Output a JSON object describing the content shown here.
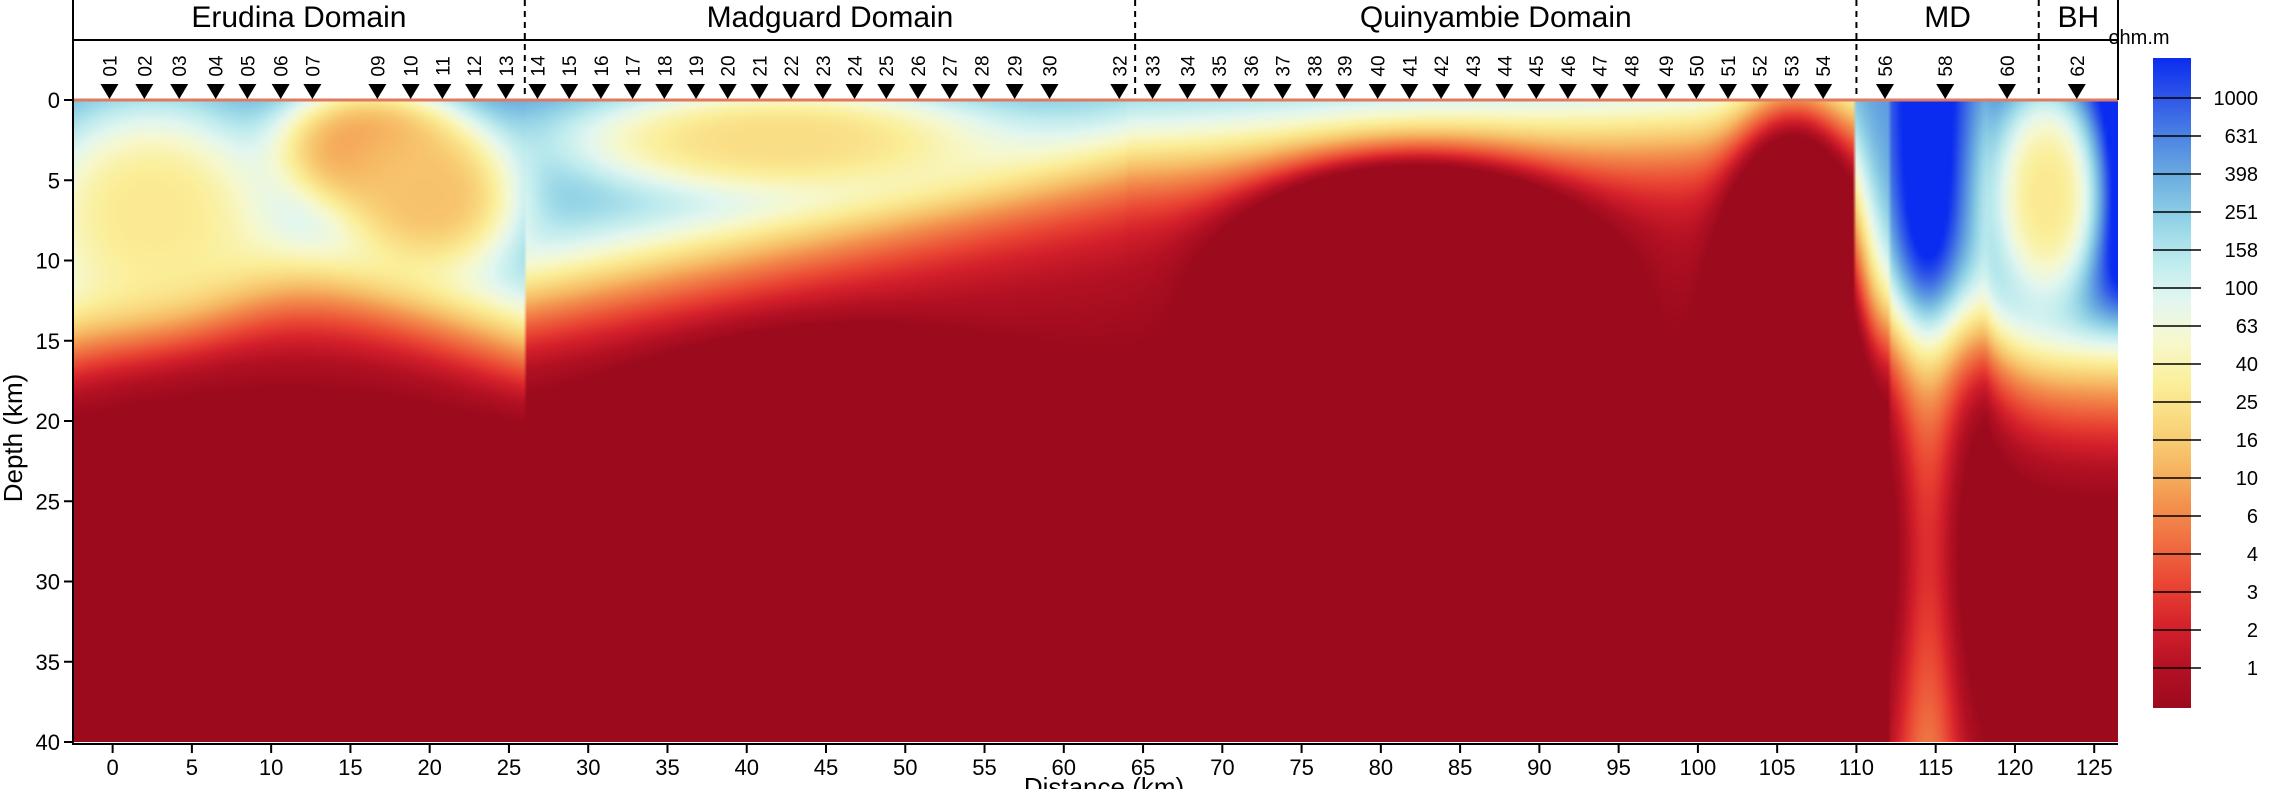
{
  "chart_data": {
    "type": "heatmap",
    "xlabel": "Distance (km)",
    "ylabel": "Depth (km)",
    "xlim": [
      -2.5,
      126.5
    ],
    "ylim": [
      0,
      40
    ],
    "x_ticks": [
      0,
      5,
      10,
      15,
      20,
      25,
      30,
      35,
      40,
      45,
      50,
      55,
      60,
      65,
      70,
      75,
      80,
      85,
      90,
      95,
      100,
      105,
      110,
      115,
      120,
      125
    ],
    "y_ticks": [
      0,
      5,
      10,
      15,
      20,
      25,
      30,
      35,
      40
    ],
    "y_inverted": true,
    "grid": false,
    "domains": [
      {
        "label": "Erudina Domain",
        "x_start": -2.5,
        "x_end": 26
      },
      {
        "label": "Madguard Domain",
        "x_start": 26,
        "x_end": 64.5
      },
      {
        "label": "Quinyambie Domain",
        "x_start": 64.5,
        "x_end": 110
      },
      {
        "label": "MD",
        "x_start": 110,
        "x_end": 121.5
      },
      {
        "label": "BH",
        "x_start": 121.5,
        "x_end": 126.5
      }
    ],
    "stations": [
      {
        "id": "01",
        "x": -0.2
      },
      {
        "id": "02",
        "x": 2.0
      },
      {
        "id": "03",
        "x": 4.2
      },
      {
        "id": "04",
        "x": 6.5
      },
      {
        "id": "05",
        "x": 8.5
      },
      {
        "id": "06",
        "x": 10.6
      },
      {
        "id": "07",
        "x": 12.6
      },
      {
        "id": "09",
        "x": 16.7
      },
      {
        "id": "10",
        "x": 18.8
      },
      {
        "id": "11",
        "x": 20.8
      },
      {
        "id": "12",
        "x": 22.8
      },
      {
        "id": "13",
        "x": 24.8
      },
      {
        "id": "14",
        "x": 26.8
      },
      {
        "id": "15",
        "x": 28.8
      },
      {
        "id": "16",
        "x": 30.8
      },
      {
        "id": "17",
        "x": 32.8
      },
      {
        "id": "18",
        "x": 34.8
      },
      {
        "id": "19",
        "x": 36.8
      },
      {
        "id": "20",
        "x": 38.8
      },
      {
        "id": "21",
        "x": 40.8
      },
      {
        "id": "22",
        "x": 42.8
      },
      {
        "id": "23",
        "x": 44.8
      },
      {
        "id": "24",
        "x": 46.8
      },
      {
        "id": "25",
        "x": 48.8
      },
      {
        "id": "26",
        "x": 50.8
      },
      {
        "id": "27",
        "x": 52.8
      },
      {
        "id": "28",
        "x": 54.8
      },
      {
        "id": "29",
        "x": 56.9
      },
      {
        "id": "30",
        "x": 59.1
      },
      {
        "id": "32",
        "x": 63.5
      },
      {
        "id": "33",
        "x": 65.6
      },
      {
        "id": "34",
        "x": 67.8
      },
      {
        "id": "35",
        "x": 69.8
      },
      {
        "id": "36",
        "x": 71.8
      },
      {
        "id": "37",
        "x": 73.8
      },
      {
        "id": "38",
        "x": 75.8
      },
      {
        "id": "39",
        "x": 77.7
      },
      {
        "id": "40",
        "x": 79.8
      },
      {
        "id": "41",
        "x": 81.8
      },
      {
        "id": "42",
        "x": 83.8
      },
      {
        "id": "43",
        "x": 85.8
      },
      {
        "id": "44",
        "x": 87.8
      },
      {
        "id": "45",
        "x": 89.8
      },
      {
        "id": "46",
        "x": 91.8
      },
      {
        "id": "47",
        "x": 93.8
      },
      {
        "id": "48",
        "x": 95.8
      },
      {
        "id": "49",
        "x": 98.0
      },
      {
        "id": "50",
        "x": 99.9
      },
      {
        "id": "51",
        "x": 101.9
      },
      {
        "id": "52",
        "x": 103.9
      },
      {
        "id": "53",
        "x": 105.9
      },
      {
        "id": "54",
        "x": 107.9
      },
      {
        "id": "56",
        "x": 111.8
      },
      {
        "id": "58",
        "x": 115.6
      },
      {
        "id": "60",
        "x": 119.5
      },
      {
        "id": "62",
        "x": 123.9
      }
    ],
    "colorbar": {
      "unit": "ohm.m",
      "levels": [
        1000,
        631,
        398,
        251,
        158,
        100,
        63,
        40,
        25,
        16,
        10,
        6,
        4,
        3,
        2,
        1
      ],
      "colors": [
        "#0a2cf0",
        "#2f57e8",
        "#4e86e2",
        "#6eb0e0",
        "#93d3e6",
        "#bdebee",
        "#e3f7ef",
        "#f7f8cc",
        "#fbef9a",
        "#f9d77d",
        "#f6b964",
        "#f3914e",
        "#ef6b40",
        "#e94332",
        "#d4202b",
        "#b31123",
        "#9c0a1d"
      ]
    },
    "anomalies": [
      {
        "name": "resistive",
        "x": 2.5,
        "depth": 7,
        "rx": 8,
        "rz": 7,
        "log10_ohm_m": 1.3
      },
      {
        "name": "resistive",
        "x": 16,
        "depth": 3,
        "rx": 6,
        "rz": 4,
        "log10_ohm_m": 0.8
      },
      {
        "name": "resistive",
        "x": 20,
        "depth": 6,
        "rx": 6,
        "rz": 5,
        "log10_ohm_m": 1.0
      },
      {
        "name": "resistive",
        "x": 42,
        "depth": 2.5,
        "rx": 14,
        "rz": 3.5,
        "log10_ohm_m": 1.2
      },
      {
        "name": "resistive",
        "x": 122,
        "depth": 6,
        "rx": 4,
        "rz": 8,
        "log10_ohm_m": 1.3
      },
      {
        "name": "conductive",
        "x": 45,
        "depth": 25,
        "rx": 13,
        "rz": 8.5,
        "log10_ohm_m": -2.0
      },
      {
        "name": "conductive",
        "x": 82,
        "depth": 11,
        "rx": 11,
        "rz": 7,
        "log10_ohm_m": -2.0
      },
      {
        "name": "conductive",
        "x": 106,
        "depth": 14,
        "rx": 4.5,
        "rz": 13,
        "log10_ohm_m": -1.6
      },
      {
        "name": "conductive",
        "x": 80,
        "depth": 26,
        "rx": 14,
        "rz": 8,
        "log10_ohm_m": -0.8
      },
      {
        "name": "conductive",
        "x": 44,
        "depth": 36,
        "rx": 16,
        "rz": 4,
        "log10_ohm_m": -0.6
      }
    ]
  }
}
